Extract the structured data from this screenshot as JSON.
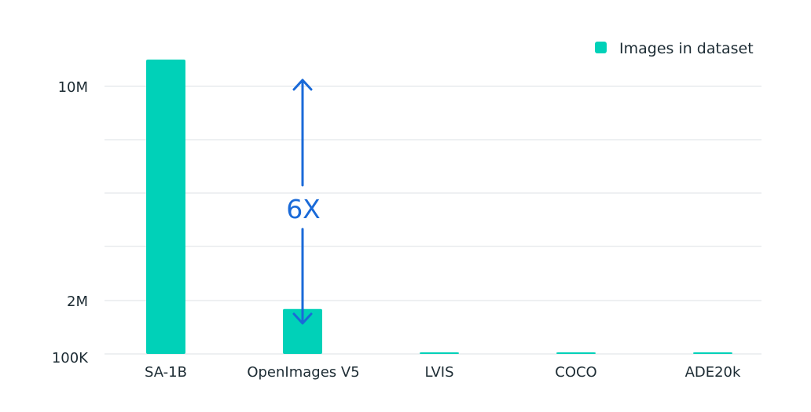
{
  "chart_data": {
    "type": "bar",
    "categories": [
      "SA-1B",
      "OpenImages V5",
      "LVIS",
      "COCO",
      "ADE20k"
    ],
    "series": [
      {
        "name": "Images in dataset",
        "values": [
          11000000,
          1700000,
          120000,
          123000,
          25000
        ]
      }
    ],
    "y_ticks": [
      {
        "value": 100000,
        "label": "100K"
      },
      {
        "value": 2000000,
        "label": "2M"
      },
      {
        "value": 10000000,
        "label": "10M"
      }
    ],
    "y_gridline_count": 6,
    "ylim_labels": [
      "100K",
      "10M"
    ],
    "legend_position": "top-right",
    "grid": true,
    "annotation": {
      "label": "6X",
      "from_category": "SA-1B",
      "at_category": "OpenImages V5"
    },
    "colors": {
      "bar": "#00d1b8",
      "annotation": "#1a6ad8",
      "grid": "#dde1e4",
      "text": "#1c2b33"
    }
  }
}
